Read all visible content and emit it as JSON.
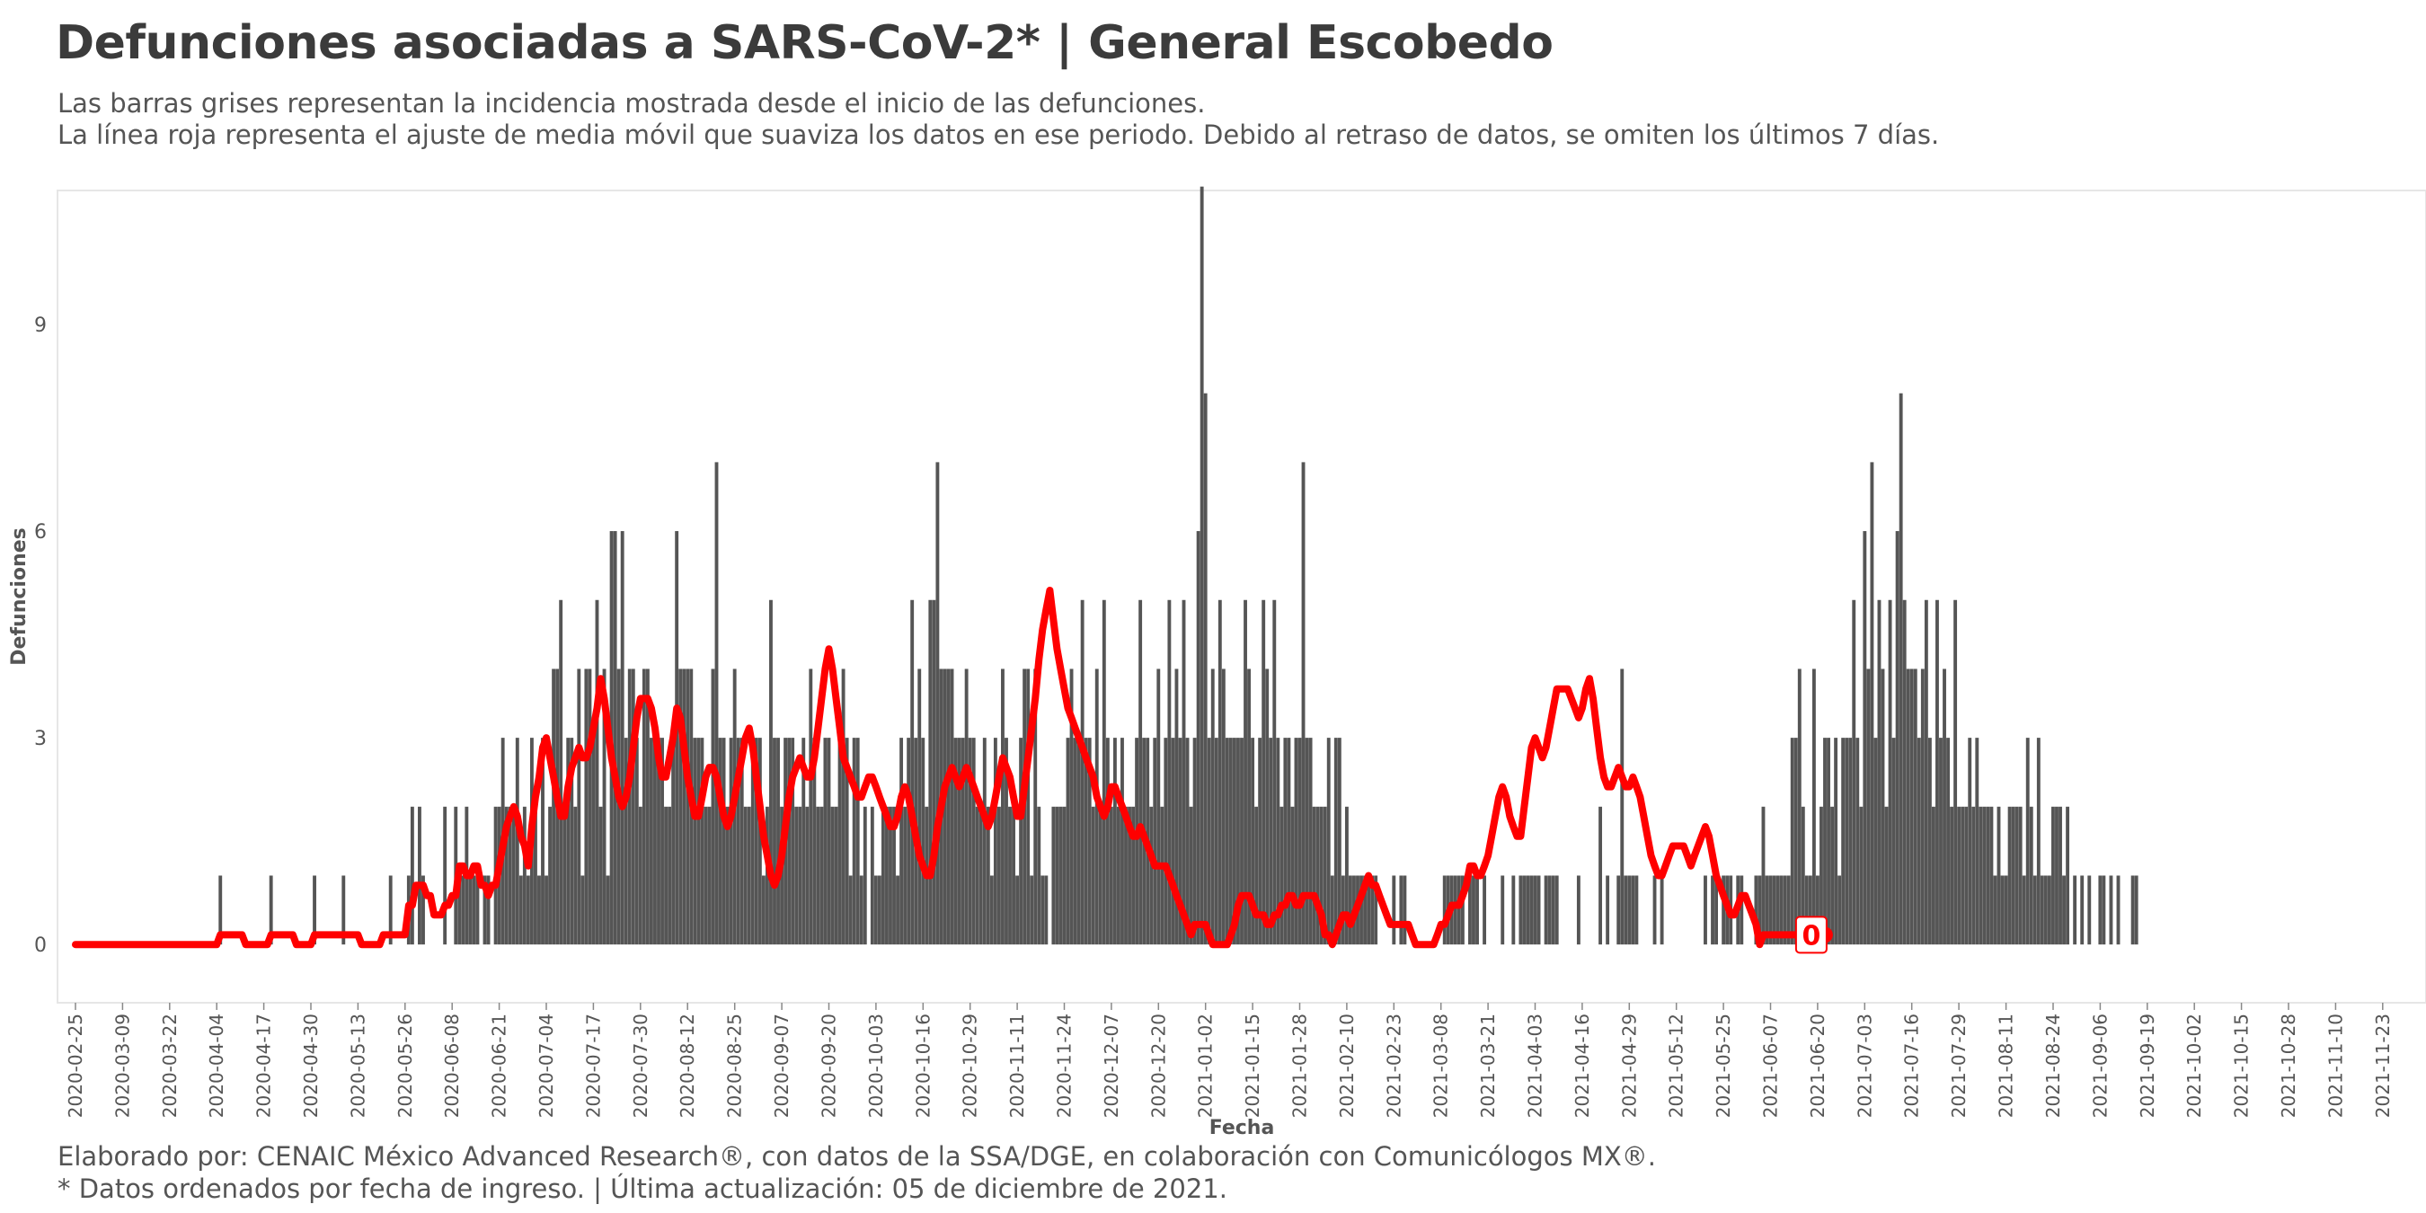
{
  "header": {
    "title": "Defunciones asociadas a SARS-CoV-2* | General Escobedo",
    "subtitle_line1": "Las barras grises representan la incidencia mostrada desde el inicio de las defunciones.",
    "subtitle_line2": "La línea roja representa el ajuste de media móvil que suaviza los datos en ese periodo. Debido al retraso de datos, se omiten los últimos 7 días."
  },
  "footer": {
    "caption_line1": "Elaborado por: CENAIC México Advanced Research®, con datos de la SSA/DGE, en colaboración con Comunicólogos MX®.",
    "caption_line2": "* Datos ordenados por fecha de ingreso. | Última actualización: 05 de diciembre de 2021."
  },
  "colors": {
    "bars": "#555555",
    "line": "#ff0000",
    "panel_border": "#e6e6e6",
    "text": "#555555"
  },
  "chart_data": {
    "type": "bar",
    "x_start": "2020-02-25",
    "x_end": "2021-11-30",
    "xlabel": "Fecha",
    "ylabel": "Defunciones",
    "ylim": [
      -0.35,
      11.1
    ],
    "yticks": [
      0,
      3,
      6,
      9
    ],
    "xticks": [
      "2020-02-25",
      "2020-03-09",
      "2020-03-22",
      "2020-04-04",
      "2020-04-17",
      "2020-04-30",
      "2020-05-13",
      "2020-05-26",
      "2020-06-08",
      "2020-06-21",
      "2020-07-04",
      "2020-07-17",
      "2020-07-30",
      "2020-08-12",
      "2020-08-25",
      "2020-09-07",
      "2020-09-20",
      "2020-10-03",
      "2020-10-16",
      "2020-10-29",
      "2020-11-11",
      "2020-11-24",
      "2020-12-07",
      "2020-12-20",
      "2021-01-02",
      "2021-01-15",
      "2021-01-28",
      "2021-02-10",
      "2021-02-23",
      "2021-03-08",
      "2021-03-21",
      "2021-04-03",
      "2021-04-16",
      "2021-04-29",
      "2021-05-12",
      "2021-05-25",
      "2021-06-07",
      "2021-06-20",
      "2021-07-03",
      "2021-07-16",
      "2021-07-29",
      "2021-08-11",
      "2021-08-24",
      "2021-09-06",
      "2021-09-19",
      "2021-10-02",
      "2021-10-15",
      "2021-10-28",
      "2021-11-10",
      "2021-11-23"
    ],
    "series": [
      {
        "kind": "bars",
        "start": "2020-02-25",
        "values": [
          0,
          0,
          0,
          0,
          0,
          0,
          0,
          0,
          0,
          0,
          0,
          0,
          0,
          0,
          0,
          0,
          0,
          0,
          0,
          0,
          0,
          0,
          0,
          0,
          0,
          0,
          0,
          0,
          0,
          0,
          0,
          0,
          0,
          0,
          0,
          0,
          0,
          0,
          0,
          0,
          1,
          0,
          0,
          0,
          0,
          0,
          0,
          0,
          0,
          0,
          0,
          0,
          0,
          0,
          1,
          0,
          0,
          0,
          0,
          0,
          0,
          0,
          0,
          0,
          0,
          0,
          1,
          0,
          0,
          0,
          0,
          0,
          0,
          0,
          1,
          0,
          0,
          0,
          0,
          0,
          0,
          0,
          0,
          0,
          0,
          0,
          0,
          1,
          0,
          0,
          0,
          0,
          1,
          2,
          0,
          2,
          1,
          0,
          0,
          0,
          0,
          0,
          2,
          0,
          0,
          2,
          1,
          1,
          2,
          1,
          1,
          1,
          0,
          1,
          1,
          0,
          2,
          2,
          3,
          2,
          2,
          2,
          3,
          1,
          2,
          1,
          3,
          2,
          1,
          3,
          1,
          2,
          4,
          4,
          5,
          2,
          3,
          3,
          2,
          4,
          1,
          4,
          4,
          3,
          5,
          2,
          4,
          1,
          6,
          6,
          4,
          6,
          3,
          4,
          4,
          3,
          2,
          4,
          4,
          3,
          3,
          3,
          3,
          2,
          2,
          3,
          6,
          4,
          4,
          4,
          4,
          3,
          3,
          3,
          2,
          2,
          4,
          7,
          3,
          3,
          2,
          3,
          4,
          3,
          3,
          2,
          2,
          3,
          3,
          3,
          1,
          2,
          5,
          3,
          3,
          2,
          3,
          3,
          3,
          2,
          2,
          3,
          2,
          4,
          3,
          2,
          2,
          3,
          3,
          2,
          2,
          3,
          4,
          3,
          1,
          3,
          3,
          1,
          2,
          0,
          2,
          1,
          1,
          2,
          2,
          2,
          2,
          1,
          3,
          2,
          3,
          5,
          3,
          4,
          3,
          2,
          5,
          5,
          7,
          4,
          4,
          4,
          4,
          3,
          3,
          3,
          4,
          3,
          3,
          2,
          2,
          3,
          2,
          1,
          3,
          2,
          4,
          3,
          2,
          2,
          1,
          3,
          4,
          4,
          1,
          4,
          2,
          1,
          1,
          0,
          2,
          2,
          2,
          2,
          3,
          4,
          3,
          3,
          5,
          3,
          3,
          2,
          4,
          2,
          5,
          3,
          2,
          3,
          2,
          3,
          2,
          2,
          2,
          3,
          5,
          3,
          3,
          2,
          3,
          4,
          2,
          3,
          5,
          3,
          4,
          3,
          5,
          3,
          2,
          3,
          6,
          11,
          8,
          3,
          4,
          3,
          5,
          4,
          3,
          3,
          3,
          3,
          3,
          5,
          4,
          3,
          2,
          3,
          5,
          4,
          3,
          5,
          3,
          2,
          3,
          3,
          2,
          3,
          3,
          7,
          3,
          3,
          2,
          2,
          2,
          2,
          3,
          1,
          3,
          3,
          1,
          2,
          1,
          1,
          1,
          1,
          1,
          1,
          1,
          1,
          0,
          0,
          0,
          0,
          1,
          0,
          1,
          1,
          0,
          0,
          0,
          0,
          0,
          0,
          0,
          0,
          0,
          0,
          1,
          1,
          1,
          1,
          1,
          1,
          0,
          1,
          1,
          1,
          0,
          1,
          0,
          0,
          0,
          0,
          1,
          0,
          0,
          1,
          0,
          1,
          1,
          1,
          1,
          1,
          1,
          0,
          1,
          1,
          1,
          1,
          0,
          0,
          0,
          0,
          0,
          1,
          0,
          0,
          0,
          0,
          0,
          2,
          0,
          1,
          0,
          0,
          1,
          4,
          1,
          1,
          1,
          1,
          0,
          0,
          0,
          0,
          1,
          0,
          1,
          0,
          0,
          0,
          0,
          0,
          0,
          0,
          0,
          0,
          0,
          0,
          1,
          0,
          1,
          1,
          0,
          1,
          1,
          1,
          0,
          1,
          1,
          0,
          0,
          0,
          1,
          1,
          2,
          1,
          1,
          1,
          1,
          1,
          1,
          1,
          3,
          3,
          4,
          2,
          1,
          1,
          4,
          1,
          2,
          3,
          3,
          2,
          3,
          1,
          3,
          3,
          3,
          5,
          3,
          2,
          6,
          4,
          7,
          3,
          5,
          4,
          2,
          5,
          3,
          6,
          8,
          5,
          4,
          4,
          4,
          3,
          4,
          5,
          3,
          2,
          5,
          3,
          4,
          3,
          2,
          5,
          2,
          2,
          2,
          3,
          2,
          3,
          2,
          2,
          2,
          2,
          1,
          2,
          1,
          1,
          2,
          2,
          2,
          2,
          1,
          3,
          2,
          1,
          3,
          1,
          1,
          1,
          2,
          2,
          2,
          1,
          2,
          0,
          1,
          0,
          1,
          0,
          1,
          0,
          0,
          1,
          1,
          0,
          1,
          0,
          1,
          0,
          0,
          0,
          1,
          1,
          0,
          0,
          0,
          0,
          0,
          0,
          0,
          0,
          0,
          0,
          0
        ]
      },
      {
        "kind": "line",
        "name": "",
        "start": "2020-02-25",
        "values": [
          0,
          0,
          0,
          0,
          0,
          0,
          0,
          0,
          0,
          0,
          0,
          0,
          0,
          0,
          0,
          0,
          0,
          0,
          0,
          0,
          0,
          0,
          0,
          0,
          0,
          0,
          0,
          0,
          0,
          0,
          0,
          0,
          0,
          0,
          0,
          0,
          0,
          0,
          0,
          0,
          0.14,
          0.14,
          0.14,
          0.14,
          0.14,
          0.14,
          0.14,
          0,
          0,
          0,
          0,
          0,
          0,
          0,
          0.14,
          0.14,
          0.14,
          0.14,
          0.14,
          0.14,
          0.14,
          0,
          0,
          0,
          0,
          0,
          0.14,
          0.14,
          0.14,
          0.14,
          0.14,
          0.14,
          0.14,
          0.14,
          0.14,
          0.14,
          0.14,
          0.14,
          0.14,
          0,
          0,
          0,
          0,
          0,
          0,
          0.14,
          0.14,
          0.14,
          0.14,
          0.14,
          0.14,
          0.14,
          0.57,
          0.57,
          0.86,
          0.86,
          0.86,
          0.71,
          0.71,
          0.43,
          0.43,
          0.43,
          0.57,
          0.57,
          0.71,
          0.71,
          1.14,
          1.14,
          1.0,
          1.0,
          1.14,
          1.14,
          0.86,
          0.86,
          0.71,
          0.86,
          0.86,
          1.14,
          1.43,
          1.71,
          1.86,
          2.0,
          1.86,
          1.57,
          1.43,
          1.14,
          1.71,
          2.14,
          2.43,
          2.86,
          3.0,
          2.71,
          2.43,
          2.14,
          1.86,
          1.86,
          2.29,
          2.57,
          2.71,
          2.86,
          2.71,
          2.71,
          2.86,
          3.14,
          3.43,
          3.86,
          3.57,
          3.14,
          2.71,
          2.43,
          2.14,
          2.0,
          2.14,
          2.43,
          2.86,
          3.29,
          3.57,
          3.57,
          3.57,
          3.43,
          3.14,
          2.71,
          2.43,
          2.43,
          2.71,
          3.0,
          3.43,
          3.29,
          2.86,
          2.43,
          2.14,
          1.86,
          1.86,
          2.14,
          2.43,
          2.57,
          2.57,
          2.43,
          2.14,
          1.86,
          1.71,
          1.86,
          2.14,
          2.43,
          2.71,
          3.0,
          3.14,
          2.86,
          2.43,
          2.0,
          1.57,
          1.29,
          1.0,
          0.86,
          1.0,
          1.29,
          1.71,
          2.14,
          2.43,
          2.57,
          2.71,
          2.57,
          2.43,
          2.43,
          2.71,
          3.14,
          3.57,
          4.0,
          4.29,
          4.0,
          3.57,
          3.14,
          2.71,
          2.57,
          2.43,
          2.29,
          2.14,
          2.14,
          2.29,
          2.43,
          2.43,
          2.29,
          2.14,
          2.0,
          1.86,
          1.71,
          1.71,
          1.86,
          2.14,
          2.29,
          2.14,
          1.86,
          1.57,
          1.29,
          1.14,
          1.0,
          1.0,
          1.29,
          1.71,
          2.0,
          2.29,
          2.43,
          2.57,
          2.43,
          2.29,
          2.43,
          2.57,
          2.43,
          2.29,
          2.14,
          2.0,
          1.86,
          1.71,
          1.86,
          2.14,
          2.43,
          2.71,
          2.57,
          2.43,
          2.14,
          1.86,
          1.86,
          2.29,
          2.71,
          3.14,
          3.57,
          4.14,
          4.57,
          4.86,
          5.14,
          4.71,
          4.29,
          4.0,
          3.71,
          3.43,
          3.29,
          3.14,
          3.0,
          2.86,
          2.71,
          2.57,
          2.43,
          2.14,
          2.0,
          1.86,
          2.0,
          2.29,
          2.29,
          2.14,
          2.0,
          1.86,
          1.71,
          1.57,
          1.57,
          1.71,
          1.57,
          1.43,
          1.29,
          1.14,
          1.14,
          1.14,
          1.14,
          1.0,
          0.86,
          0.71,
          0.57,
          0.43,
          0.29,
          0.14,
          0.29,
          0.29,
          0.29,
          0.29,
          0.14,
          0,
          0,
          0,
          0,
          0,
          0.14,
          0.29,
          0.57,
          0.71,
          0.71,
          0.71,
          0.57,
          0.43,
          0.43,
          0.43,
          0.29,
          0.29,
          0.43,
          0.43,
          0.57,
          0.57,
          0.71,
          0.71,
          0.57,
          0.57,
          0.71,
          0.71,
          0.71,
          0.71,
          0.57,
          0.43,
          0.14,
          0.14,
          0,
          0.14,
          0.29,
          0.43,
          0.43,
          0.29,
          0.43,
          0.57,
          0.71,
          0.86,
          1.0,
          0.86,
          0.86,
          0.71,
          0.57,
          0.43,
          0.29,
          0.29,
          0.29,
          0.29,
          0.29,
          0.29,
          0.14,
          0,
          0,
          0,
          0,
          0,
          0,
          0.14,
          0.29,
          0.29,
          0.43,
          0.57,
          0.57,
          0.57,
          0.71,
          0.86,
          1.14,
          1.14,
          1.0,
          1.0,
          1.14,
          1.29,
          1.57,
          1.86,
          2.14,
          2.29,
          2.14,
          1.86,
          1.71,
          1.57,
          1.57,
          2.0,
          2.43,
          2.86,
          3.0,
          2.86,
          2.71,
          2.86,
          3.14,
          3.43,
          3.71,
          3.71,
          3.71,
          3.71,
          3.57,
          3.43,
          3.29,
          3.43,
          3.71,
          3.86,
          3.57,
          3.14,
          2.71,
          2.43,
          2.29,
          2.29,
          2.43,
          2.57,
          2.43,
          2.29,
          2.29,
          2.43,
          2.29,
          2.14,
          1.86,
          1.57,
          1.29,
          1.14,
          1.0,
          1.0,
          1.14,
          1.29,
          1.43,
          1.43,
          1.43,
          1.43,
          1.29,
          1.14,
          1.29,
          1.43,
          1.57,
          1.71,
          1.57,
          1.29,
          1.0,
          0.86,
          0.71,
          0.57,
          0.43,
          0.43,
          0.57,
          0.71,
          0.71,
          0.57,
          0.43,
          0.29,
          0,
          0.14,
          0.14,
          0.14,
          0.14,
          0.14,
          0.14,
          0.14,
          0.14,
          0.14,
          0.14,
          0.14,
          0.14,
          0.14,
          0.14,
          0.14
        ]
      }
    ],
    "last_value_label": "0",
    "grid": false,
    "legend": "none"
  }
}
